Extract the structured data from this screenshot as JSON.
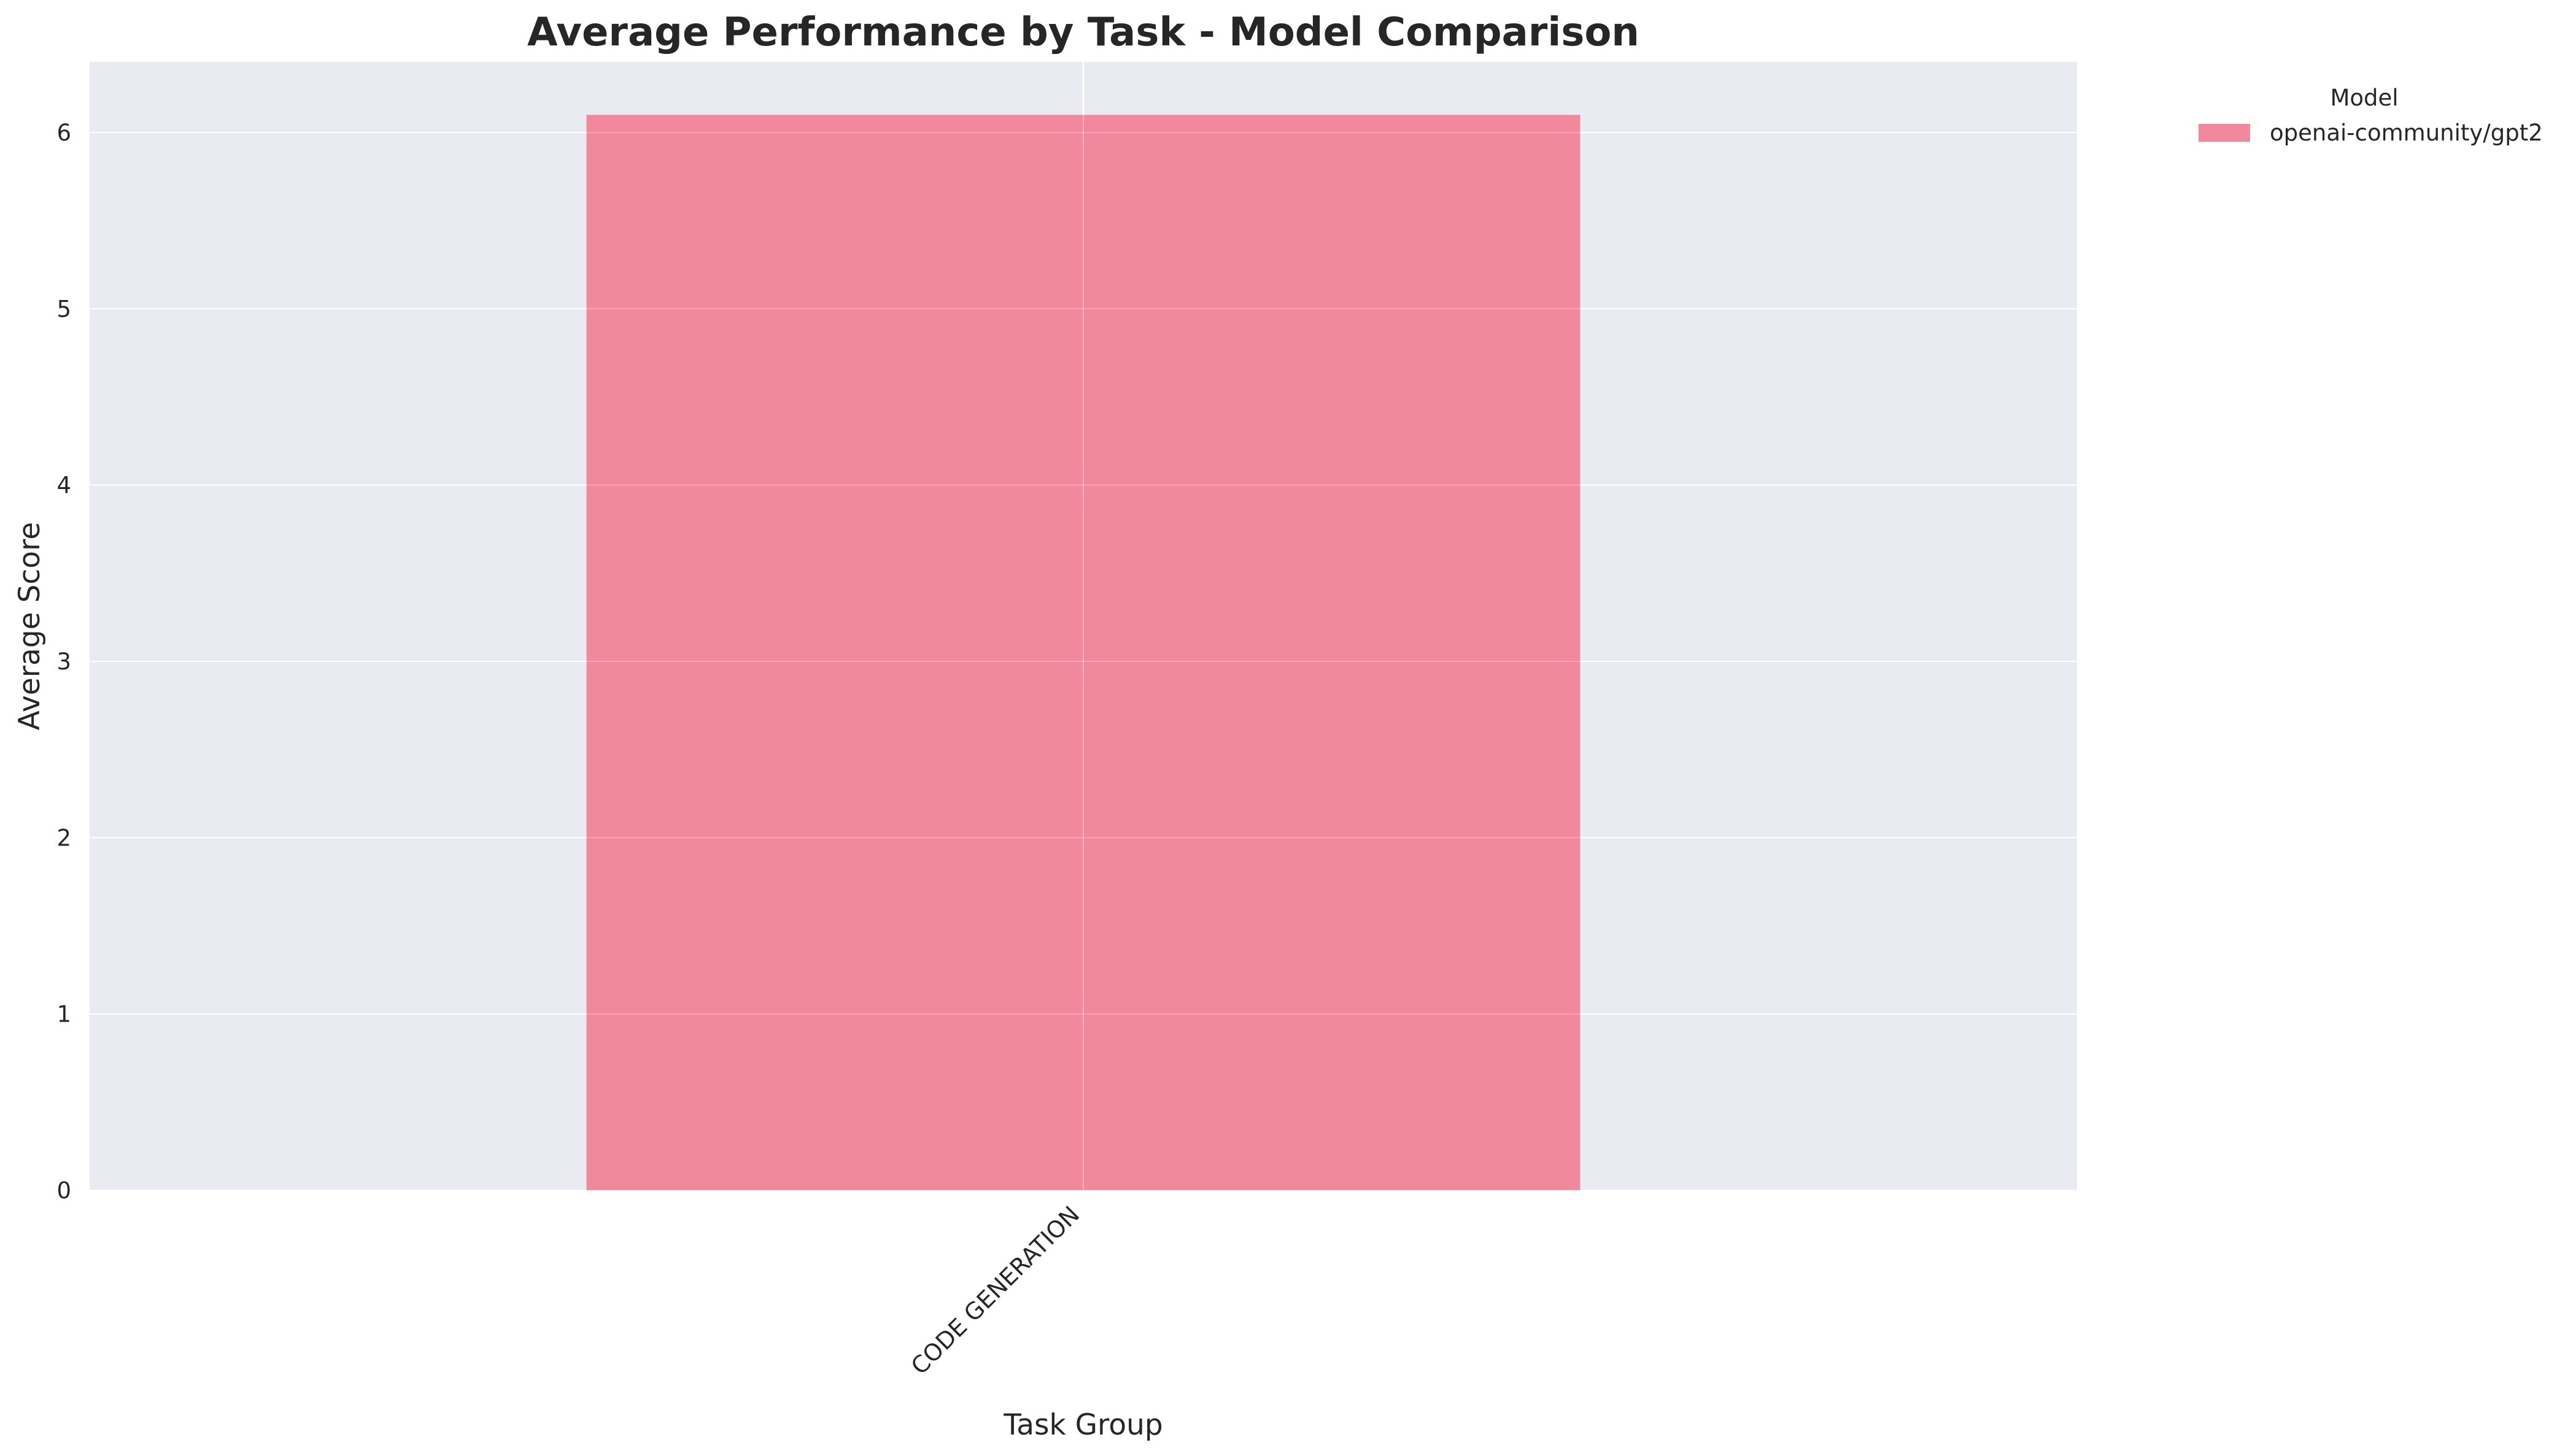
{
  "chart_data": {
    "type": "bar",
    "title": "Average Performance by Task - Model Comparison",
    "xlabel": "Task Group",
    "ylabel": "Average Score",
    "categories": [
      "CODE GENERATION"
    ],
    "series": [
      {
        "name": "openai-community/gpt2",
        "values": [
          6.1
        ],
        "color": "#f2889b"
      }
    ],
    "ylim": [
      0,
      6.4
    ],
    "yticks": [
      "0",
      "1",
      "2",
      "3",
      "4",
      "5",
      "6"
    ],
    "grid": true,
    "legend": {
      "title": "Model",
      "placement": "outside-top-right"
    },
    "colors": {
      "plot_background": "#eaeaf2",
      "grid": "#ffffff",
      "text": "#262626"
    }
  }
}
